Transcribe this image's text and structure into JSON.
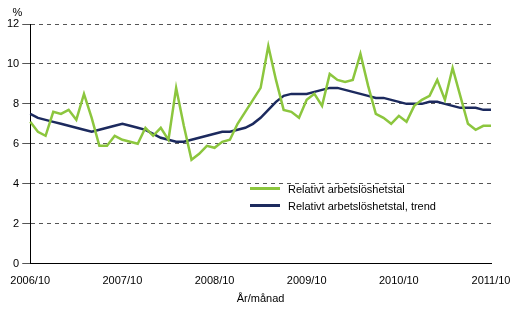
{
  "chart_data": {
    "type": "line",
    "xlabel": "År/månad",
    "ylabel": "%",
    "categories": [
      "2006/10",
      null,
      null,
      null,
      null,
      null,
      null,
      null,
      null,
      null,
      null,
      null,
      "2007/10",
      null,
      null,
      null,
      null,
      null,
      null,
      null,
      null,
      null,
      null,
      null,
      "2008/10",
      null,
      null,
      null,
      null,
      null,
      null,
      null,
      null,
      null,
      null,
      null,
      "2009/10",
      null,
      null,
      null,
      null,
      null,
      null,
      null,
      null,
      null,
      null,
      null,
      "2010/10",
      null,
      null,
      null,
      null,
      null,
      null,
      null,
      null,
      null,
      null,
      null,
      "2011/10"
    ],
    "series": [
      {
        "name": "Relativt arbetslöshetstal",
        "color": "#8cc63e",
        "values": [
          7.1,
          6.6,
          6.4,
          7.6,
          7.5,
          7.7,
          7.2,
          8.5,
          7.3,
          5.9,
          5.9,
          6.4,
          6.2,
          6.1,
          6.0,
          6.8,
          6.4,
          6.8,
          6.2,
          8.8,
          6.9,
          5.2,
          5.5,
          5.9,
          5.8,
          6.1,
          6.2,
          7.0,
          7.6,
          8.2,
          8.8,
          10.9,
          9.2,
          7.7,
          7.6,
          7.3,
          8.2,
          8.5,
          7.9,
          9.5,
          9.2,
          9.1,
          9.2,
          10.5,
          8.9,
          7.5,
          7.3,
          7.0,
          7.4,
          7.1,
          7.9,
          8.2,
          8.4,
          9.2,
          8.2,
          9.8,
          8.4,
          7.0,
          6.7,
          6.9,
          6.9
        ]
      },
      {
        "name": "Relativt arbetslöshetstal, trend",
        "color": "#1c2a5e",
        "values": [
          7.5,
          7.3,
          7.2,
          7.1,
          7.0,
          6.9,
          6.8,
          6.7,
          6.6,
          6.7,
          6.8,
          6.9,
          7.0,
          6.9,
          6.8,
          6.7,
          6.5,
          6.3,
          6.2,
          6.1,
          6.1,
          6.2,
          6.3,
          6.4,
          6.5,
          6.6,
          6.6,
          6.7,
          6.8,
          7.0,
          7.3,
          7.7,
          8.1,
          8.4,
          8.5,
          8.5,
          8.5,
          8.6,
          8.7,
          8.8,
          8.8,
          8.7,
          8.6,
          8.5,
          8.4,
          8.3,
          8.3,
          8.2,
          8.1,
          8.0,
          8.0,
          8.0,
          8.1,
          8.1,
          8.0,
          7.9,
          7.8,
          7.8,
          7.8,
          7.7,
          7.7
        ]
      }
    ],
    "ylim": [
      0,
      12
    ],
    "yticks": [
      0,
      2,
      4,
      6,
      8,
      10,
      12
    ],
    "grid": true,
    "legend": "lower right"
  }
}
